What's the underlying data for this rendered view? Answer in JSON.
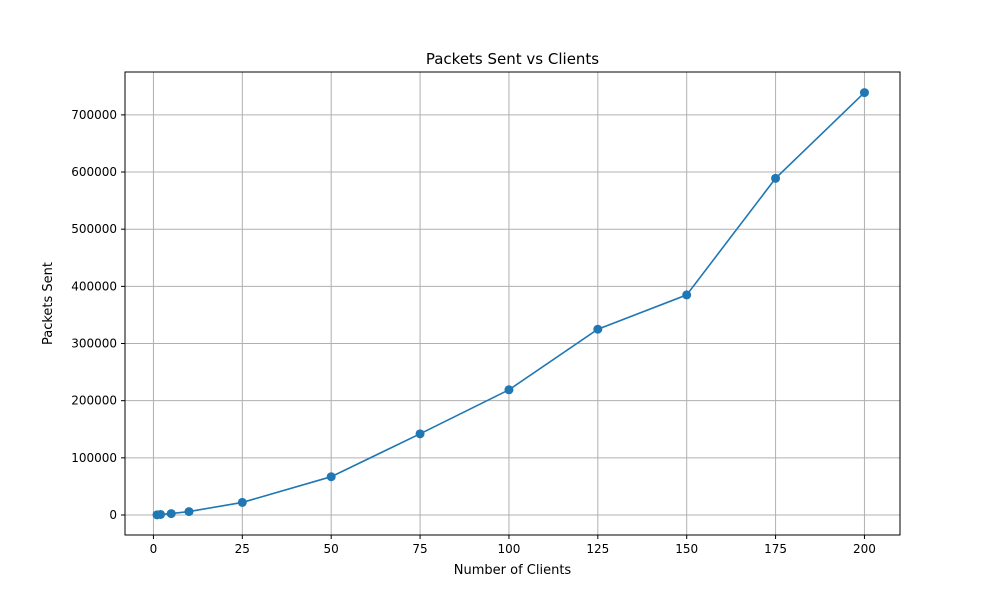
{
  "chart_data": {
    "type": "line",
    "title": "Packets Sent vs Clients",
    "xlabel": "Number of Clients",
    "ylabel": "Packets Sent",
    "xlim": [
      -8,
      210
    ],
    "ylim": [
      -35000,
      775000
    ],
    "xticks": [
      0,
      25,
      50,
      75,
      100,
      125,
      150,
      175,
      200
    ],
    "yticks": [
      0,
      100000,
      200000,
      300000,
      400000,
      500000,
      600000,
      700000
    ],
    "grid": true,
    "series": [
      {
        "color": "#1f77b4",
        "marker": "circle",
        "x": [
          1,
          2,
          5,
          10,
          25,
          50,
          75,
          100,
          125,
          150,
          175,
          200
        ],
        "y": [
          300,
          900,
          2500,
          6000,
          22000,
          67000,
          142000,
          219000,
          325000,
          385000,
          589000,
          739000
        ]
      }
    ]
  }
}
